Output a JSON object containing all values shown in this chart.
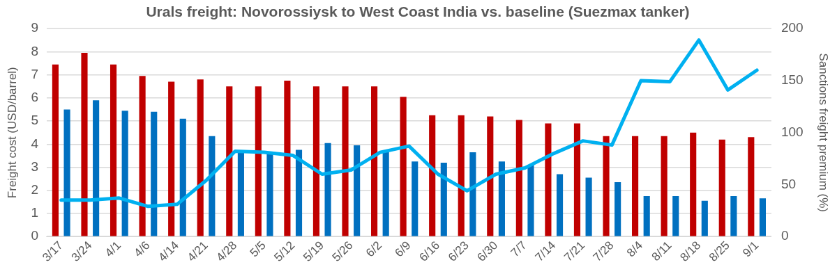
{
  "chart_data": {
    "type": "bar",
    "title": "Urals freight: Novorossiysk to West Coast India vs. baseline (Suezmax tanker)",
    "ylabel": "Freight cost (USD/barrel)",
    "y2label": "Sanctions freight premium (%)",
    "categories": [
      "3/17",
      "3/24",
      "4/1",
      "4/6",
      "4/14",
      "4/21",
      "4/28",
      "5/5",
      "5/12",
      "5/19",
      "5/26",
      "6/2",
      "6/9",
      "6/16",
      "6/23",
      "6/30",
      "7/7",
      "7/14",
      "7/21",
      "7/28",
      "8/4",
      "8/11",
      "8/18",
      "8/25",
      "9/1"
    ],
    "series": [
      {
        "color": "#c00000",
        "values": [
          7.45,
          7.95,
          7.45,
          6.95,
          6.7,
          6.8,
          6.5,
          6.5,
          6.75,
          6.5,
          6.5,
          6.5,
          6.05,
          5.25,
          5.25,
          5.2,
          5.05,
          4.9,
          4.9,
          4.35,
          4.35,
          4.35,
          4.5,
          4.2,
          4.3
        ]
      },
      {
        "color": "#0070c0",
        "values": [
          5.5,
          5.9,
          5.45,
          5.4,
          5.1,
          4.35,
          3.65,
          3.6,
          3.75,
          4.05,
          3.95,
          3.65,
          3.25,
          3.2,
          3.65,
          3.25,
          3.1,
          2.7,
          2.55,
          2.35,
          1.75,
          1.75,
          1.55,
          1.75,
          1.65
        ]
      },
      {
        "type": "line",
        "axis": "y2",
        "color": "#00b0f0",
        "values": [
          35,
          35,
          37,
          29,
          31,
          54,
          82,
          81,
          78,
          60,
          64,
          81,
          87,
          60,
          44,
          60,
          66,
          80,
          92,
          88,
          150,
          149,
          189,
          141,
          160
        ]
      }
    ],
    "ylim": [
      0,
      9
    ],
    "yticks": [
      0,
      1,
      2,
      3,
      4,
      5,
      6,
      7,
      8,
      9
    ],
    "y2lim": [
      0,
      200
    ],
    "y2ticks": [
      0,
      50,
      100,
      150,
      200
    ],
    "grid": "y",
    "legend": false,
    "marker": "none",
    "line_style": "solid"
  }
}
